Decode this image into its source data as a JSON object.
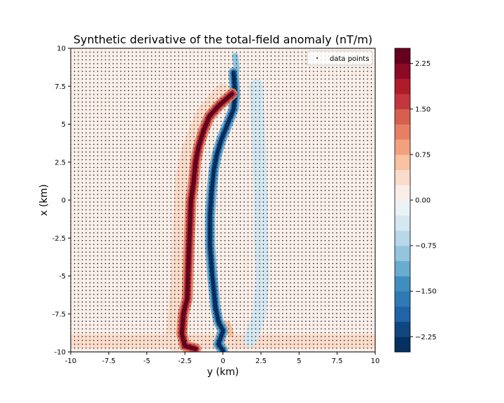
{
  "chart_data": {
    "type": "heatmap",
    "title": "Synthetic derivative of the total-field anomaly (nT/m)",
    "xlabel": "y (km)",
    "ylabel": "x (km)",
    "xlim": [
      -10,
      10
    ],
    "ylim": [
      -10,
      10
    ],
    "x_ticks": [
      "-10",
      "-7.5",
      "-5",
      "-2.5",
      "0",
      "2.5",
      "5",
      "7.5",
      "10"
    ],
    "x_tick_values": [
      -10,
      -7.5,
      -5,
      -2.5,
      0,
      2.5,
      5,
      7.5,
      10
    ],
    "y_ticks": [
      "-10",
      "-7.5",
      "-5",
      "-2.5",
      "0",
      "2.5",
      "5",
      "7.5",
      "10"
    ],
    "y_tick_values": [
      -10,
      -7.5,
      -5,
      -2.5,
      0,
      2.5,
      5,
      7.5,
      10
    ],
    "grid_points": 80,
    "legend": {
      "label": "data points",
      "placement": "top-right"
    },
    "colorbar": {
      "range": [
        -2.5,
        2.5
      ],
      "ticks": [
        "2.25",
        "1.50",
        "0.75",
        "0.00",
        "−0.75",
        "−1.50",
        "−2.25"
      ],
      "tick_values": [
        2.25,
        1.5,
        0.75,
        0.0,
        -0.75,
        -1.5,
        -2.25
      ],
      "colors": [
        "#053061",
        "#114781",
        "#1f63a8",
        "#2f79b5",
        "#3f8ec0",
        "#6aacd0",
        "#93c6de",
        "#b8d8e9",
        "#d5e7f1",
        "#ebf2f6",
        "#f9eee8",
        "#fbdcca",
        "#f8c2a3",
        "#f2a17f",
        "#e58064",
        "#d6604d",
        "#c2373d",
        "#b01b2c",
        "#8b0b26",
        "#67001f"
      ]
    },
    "field_paths": [
      {
        "name": "red-band",
        "value": 2.3,
        "width_km": 0.28,
        "points": [
          [
            0.6,
            7.0
          ],
          [
            -0.3,
            6.2
          ],
          [
            -0.9,
            5.5
          ],
          [
            -1.3,
            4.5
          ],
          [
            -1.6,
            3.5
          ],
          [
            -1.8,
            2.5
          ],
          [
            -1.95,
            1.0
          ],
          [
            -2.1,
            0.0
          ],
          [
            -2.2,
            -2.5
          ],
          [
            -2.3,
            -5.0
          ],
          [
            -2.35,
            -6.5
          ],
          [
            -2.6,
            -7.5
          ],
          [
            -2.7,
            -8.8
          ],
          [
            -2.5,
            -9.6
          ],
          [
            -1.8,
            -9.8
          ]
        ]
      },
      {
        "name": "blue-band",
        "value": -2.3,
        "width_km": 0.26,
        "points": [
          [
            0.7,
            8.4
          ],
          [
            0.8,
            7.0
          ],
          [
            0.7,
            6.0
          ],
          [
            0.3,
            5.0
          ],
          [
            -0.1,
            4.0
          ],
          [
            -0.4,
            3.0
          ],
          [
            -0.6,
            2.0
          ],
          [
            -0.75,
            0.5
          ],
          [
            -0.85,
            -1.0
          ],
          [
            -0.85,
            -3.0
          ],
          [
            -0.7,
            -5.0
          ],
          [
            -0.6,
            -6.0
          ],
          [
            -0.5,
            -7.0
          ],
          [
            -0.3,
            -8.0
          ],
          [
            0.0,
            -8.6
          ],
          [
            -0.3,
            -9.5
          ],
          [
            0.0,
            -9.9
          ]
        ]
      },
      {
        "name": "light-red-halo",
        "value": 0.45,
        "width_km": 1.3,
        "points": [
          [
            0.0,
            7.0
          ],
          [
            -1.2,
            5.5
          ],
          [
            -2.0,
            3.5
          ],
          [
            -2.5,
            1.5
          ],
          [
            -2.6,
            -1.0
          ],
          [
            -2.7,
            -3.5
          ],
          [
            -2.8,
            -6.0
          ],
          [
            -3.0,
            -8.0
          ],
          [
            -3.1,
            -9.3
          ]
        ]
      },
      {
        "name": "light-blue-band",
        "value": -0.45,
        "width_km": 0.9,
        "points": [
          [
            2.2,
            7.5
          ],
          [
            2.3,
            5.0
          ],
          [
            2.4,
            2.5
          ],
          [
            2.5,
            0.0
          ],
          [
            2.5,
            -2.5
          ],
          [
            2.6,
            -5.0
          ],
          [
            2.4,
            -7.5
          ],
          [
            1.8,
            -9.2
          ]
        ]
      },
      {
        "name": "top-blue-spot",
        "value": -0.8,
        "width_km": 0.4,
        "points": [
          [
            0.8,
            9.5
          ],
          [
            0.9,
            8.6
          ]
        ]
      },
      {
        "name": "lower-red-spot",
        "value": 0.7,
        "width_km": 0.45,
        "points": [
          [
            0.3,
            -8.2
          ],
          [
            0.5,
            -8.8
          ]
        ]
      },
      {
        "name": "bottom-red-band",
        "value": 0.25,
        "width_km": 0.9,
        "points": [
          [
            -10,
            -9.3
          ],
          [
            -5,
            -9.3
          ],
          [
            0,
            -9.3
          ],
          [
            5,
            -9.3
          ],
          [
            10,
            -9.3
          ]
        ]
      }
    ]
  }
}
